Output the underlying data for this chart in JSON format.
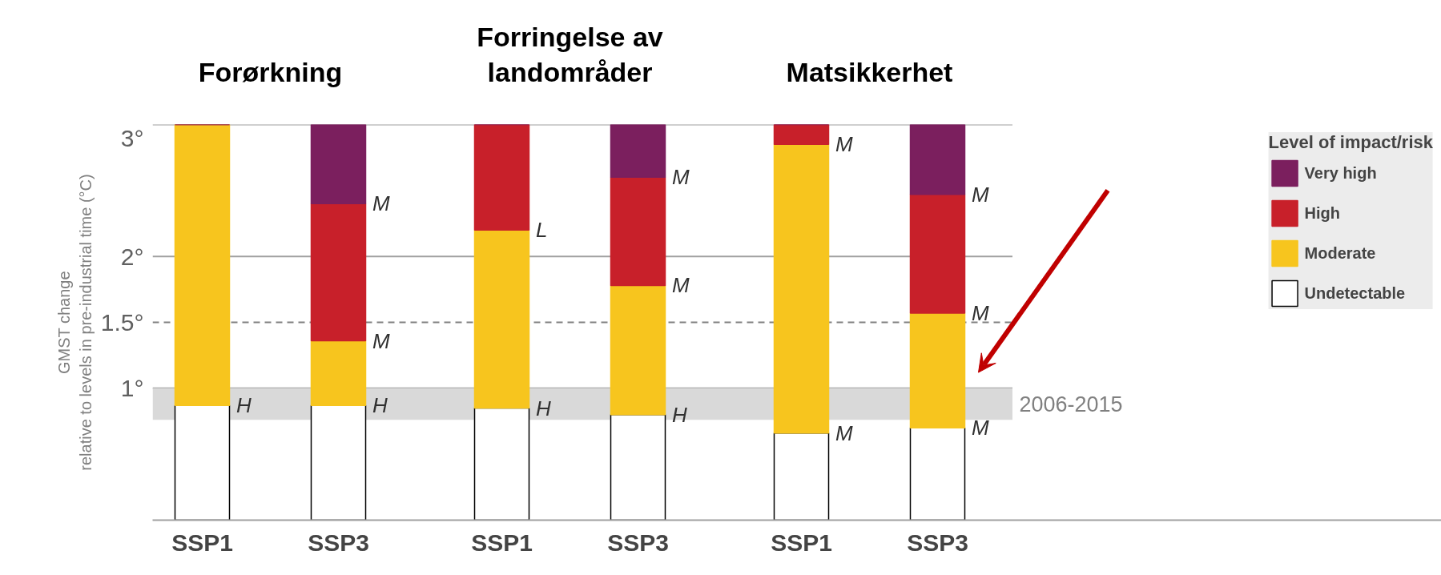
{
  "chart_data": {
    "type": "bar",
    "stacked": true,
    "categories": [
      "SSP1",
      "SSP3",
      "SSP1",
      "SSP3",
      "SSP1",
      "SSP3"
    ],
    "series": [
      {
        "name": "Undetectable",
        "color": "#ffffff",
        "values": [
          0.87,
          0.87,
          0.85,
          0.8,
          0.66,
          0.7
        ],
        "value_labels": [
          "H",
          "H",
          "H",
          "H",
          "M",
          "M"
        ]
      },
      {
        "name": "Moderate",
        "color": "#f7c51e",
        "values": [
          2.13,
          0.49,
          1.35,
          0.98,
          2.19,
          0.87
        ],
        "value_labels": [
          null,
          "M",
          "L",
          "M",
          "M",
          "M"
        ]
      },
      {
        "name": "High",
        "color": "#c8202a",
        "values": [
          0,
          1.04,
          0.8,
          0.82,
          0.15,
          0.9
        ],
        "value_labels": [
          null,
          "M",
          null,
          "M",
          null,
          "M"
        ]
      },
      {
        "name": "Very high",
        "color": "#7b1f5e",
        "values": [
          0,
          0.6,
          0,
          0.4,
          0,
          0.53
        ]
      }
    ],
    "ylabel": "GMST change\nrelative to levels in pre-industrial time (°C)",
    "legend_title": "Level of impact/risk",
    "legend": "top right",
    "ylim": [
      0,
      3
    ],
    "yticks": [
      {
        "value": 1,
        "label": "1°"
      },
      {
        "value": 1.5,
        "label": "1.5°"
      },
      {
        "value": 2,
        "label": "2°"
      },
      {
        "value": 3,
        "label": "3°"
      }
    ],
    "grid": "y",
    "ref_lines": [
      {
        "axis": "y",
        "value": 1.5,
        "line_style": "dashed",
        "color": "#808080"
      }
    ],
    "bands": [
      {
        "axis": "y",
        "from": 0.76,
        "to": 1.0,
        "label": "2006-2015",
        "color": "#d9d9d9"
      }
    ],
    "annotations": [
      "Forørkning",
      "Forringelse av landområder",
      "Matsikkerhet"
    ]
  }
}
